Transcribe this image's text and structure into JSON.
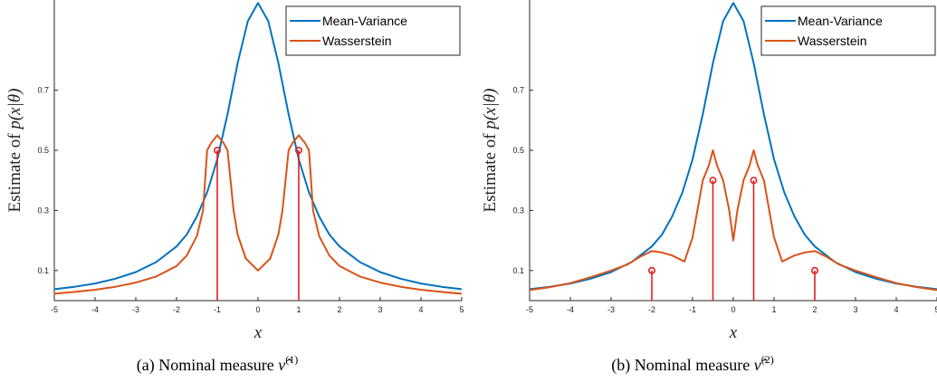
{
  "chart_data": [
    {
      "type": "line",
      "caption_prefix": "(a)  Nominal measure",
      "caption_symbol": "ν̂",
      "caption_sup": "(1)",
      "xlabel": "x",
      "ylabel_text": "Estimate of ",
      "ylabel_math": "p(x|θ)",
      "xlim": [
        -5,
        5
      ],
      "ylim": [
        0,
        1.0
      ],
      "xticks": [
        -5,
        -4,
        -3,
        -2,
        -1,
        0,
        1,
        2,
        3,
        4,
        5
      ],
      "yticks": [
        0.1,
        0.3,
        0.5,
        0.7
      ],
      "legend_position": "top-right",
      "series": [
        {
          "name": "Mean-Variance",
          "color": "#0072BD",
          "x": [
            -5,
            -4.5,
            -4,
            -3.5,
            -3,
            -2.5,
            -2,
            -1.75,
            -1.5,
            -1.25,
            -1,
            -0.75,
            -0.5,
            -0.25,
            0,
            0.25,
            0.5,
            0.75,
            1,
            1.25,
            1.5,
            1.75,
            2,
            2.5,
            3,
            3.5,
            4,
            4.5,
            5
          ],
          "y": [
            0.038,
            0.046,
            0.057,
            0.073,
            0.095,
            0.128,
            0.18,
            0.22,
            0.28,
            0.36,
            0.47,
            0.62,
            0.79,
            0.93,
            0.99,
            0.93,
            0.79,
            0.62,
            0.47,
            0.36,
            0.28,
            0.22,
            0.18,
            0.128,
            0.095,
            0.073,
            0.057,
            0.046,
            0.038
          ]
        },
        {
          "name": "Wasserstein",
          "color": "#D95319",
          "x": [
            -5,
            -4.5,
            -4,
            -3.5,
            -3,
            -2.5,
            -2,
            -1.75,
            -1.5,
            -1.35,
            -1.25,
            -1.15,
            -1,
            -0.85,
            -0.75,
            -0.6,
            -0.5,
            -0.3,
            0,
            0.3,
            0.5,
            0.6,
            0.75,
            0.85,
            1,
            1.15,
            1.25,
            1.35,
            1.5,
            1.75,
            2,
            2.5,
            3,
            3.5,
            4,
            4.5,
            5
          ],
          "y": [
            0.023,
            0.029,
            0.036,
            0.046,
            0.06,
            0.08,
            0.115,
            0.15,
            0.215,
            0.3,
            0.5,
            0.525,
            0.55,
            0.525,
            0.5,
            0.3,
            0.22,
            0.14,
            0.1,
            0.14,
            0.22,
            0.3,
            0.5,
            0.525,
            0.55,
            0.525,
            0.5,
            0.3,
            0.215,
            0.15,
            0.115,
            0.08,
            0.06,
            0.046,
            0.036,
            0.029,
            0.023
          ]
        }
      ],
      "stems": [
        {
          "x": -1,
          "y": 0.5,
          "color": "#E02020"
        },
        {
          "x": 1,
          "y": 0.5,
          "color": "#E02020"
        }
      ]
    },
    {
      "type": "line",
      "caption_prefix": "(b)  Nominal measure",
      "caption_symbol": "ν̂",
      "caption_sup": "(2)",
      "xlabel": "x",
      "ylabel_text": "Estimate of ",
      "ylabel_math": "p(x|θ)",
      "xlim": [
        -5,
        5
      ],
      "ylim": [
        0,
        1.0
      ],
      "xticks": [
        -5,
        -4,
        -3,
        -2,
        -1,
        0,
        1,
        2,
        3,
        4,
        5
      ],
      "yticks": [
        0.1,
        0.3,
        0.5,
        0.7
      ],
      "legend_position": "top-right",
      "series": [
        {
          "name": "Mean-Variance",
          "color": "#0072BD",
          "x": [
            -5,
            -4.5,
            -4,
            -3.5,
            -3,
            -2.5,
            -2,
            -1.75,
            -1.5,
            -1.25,
            -1,
            -0.75,
            -0.5,
            -0.25,
            0,
            0.25,
            0.5,
            0.75,
            1,
            1.25,
            1.5,
            1.75,
            2,
            2.5,
            3,
            3.5,
            4,
            4.5,
            5
          ],
          "y": [
            0.038,
            0.046,
            0.057,
            0.073,
            0.095,
            0.128,
            0.18,
            0.22,
            0.28,
            0.36,
            0.47,
            0.62,
            0.79,
            0.93,
            0.99,
            0.93,
            0.79,
            0.62,
            0.47,
            0.36,
            0.28,
            0.22,
            0.18,
            0.128,
            0.095,
            0.073,
            0.057,
            0.046,
            0.038
          ]
        },
        {
          "name": "Wasserstein",
          "color": "#D95319",
          "x": [
            -5,
            -4.5,
            -4,
            -3.5,
            -3,
            -2.6,
            -2.3,
            -2,
            -1.75,
            -1.5,
            -1.2,
            -1,
            -0.75,
            -0.6,
            -0.5,
            -0.4,
            -0.25,
            -0.1,
            0,
            0.1,
            0.25,
            0.4,
            0.5,
            0.6,
            0.75,
            1,
            1.2,
            1.5,
            1.75,
            2,
            2.3,
            2.6,
            3,
            3.5,
            4,
            4.5,
            5
          ],
          "y": [
            0.035,
            0.045,
            0.058,
            0.078,
            0.1,
            0.12,
            0.145,
            0.165,
            0.16,
            0.15,
            0.13,
            0.21,
            0.4,
            0.45,
            0.5,
            0.45,
            0.4,
            0.3,
            0.2,
            0.3,
            0.4,
            0.45,
            0.5,
            0.45,
            0.4,
            0.21,
            0.13,
            0.15,
            0.16,
            0.165,
            0.145,
            0.12,
            0.1,
            0.078,
            0.058,
            0.045,
            0.035
          ]
        }
      ],
      "stems": [
        {
          "x": -2,
          "y": 0.1,
          "color": "#E02020"
        },
        {
          "x": -0.5,
          "y": 0.4,
          "color": "#E02020"
        },
        {
          "x": 0.5,
          "y": 0.4,
          "color": "#E02020"
        },
        {
          "x": 2,
          "y": 0.1,
          "color": "#E02020"
        }
      ]
    }
  ]
}
